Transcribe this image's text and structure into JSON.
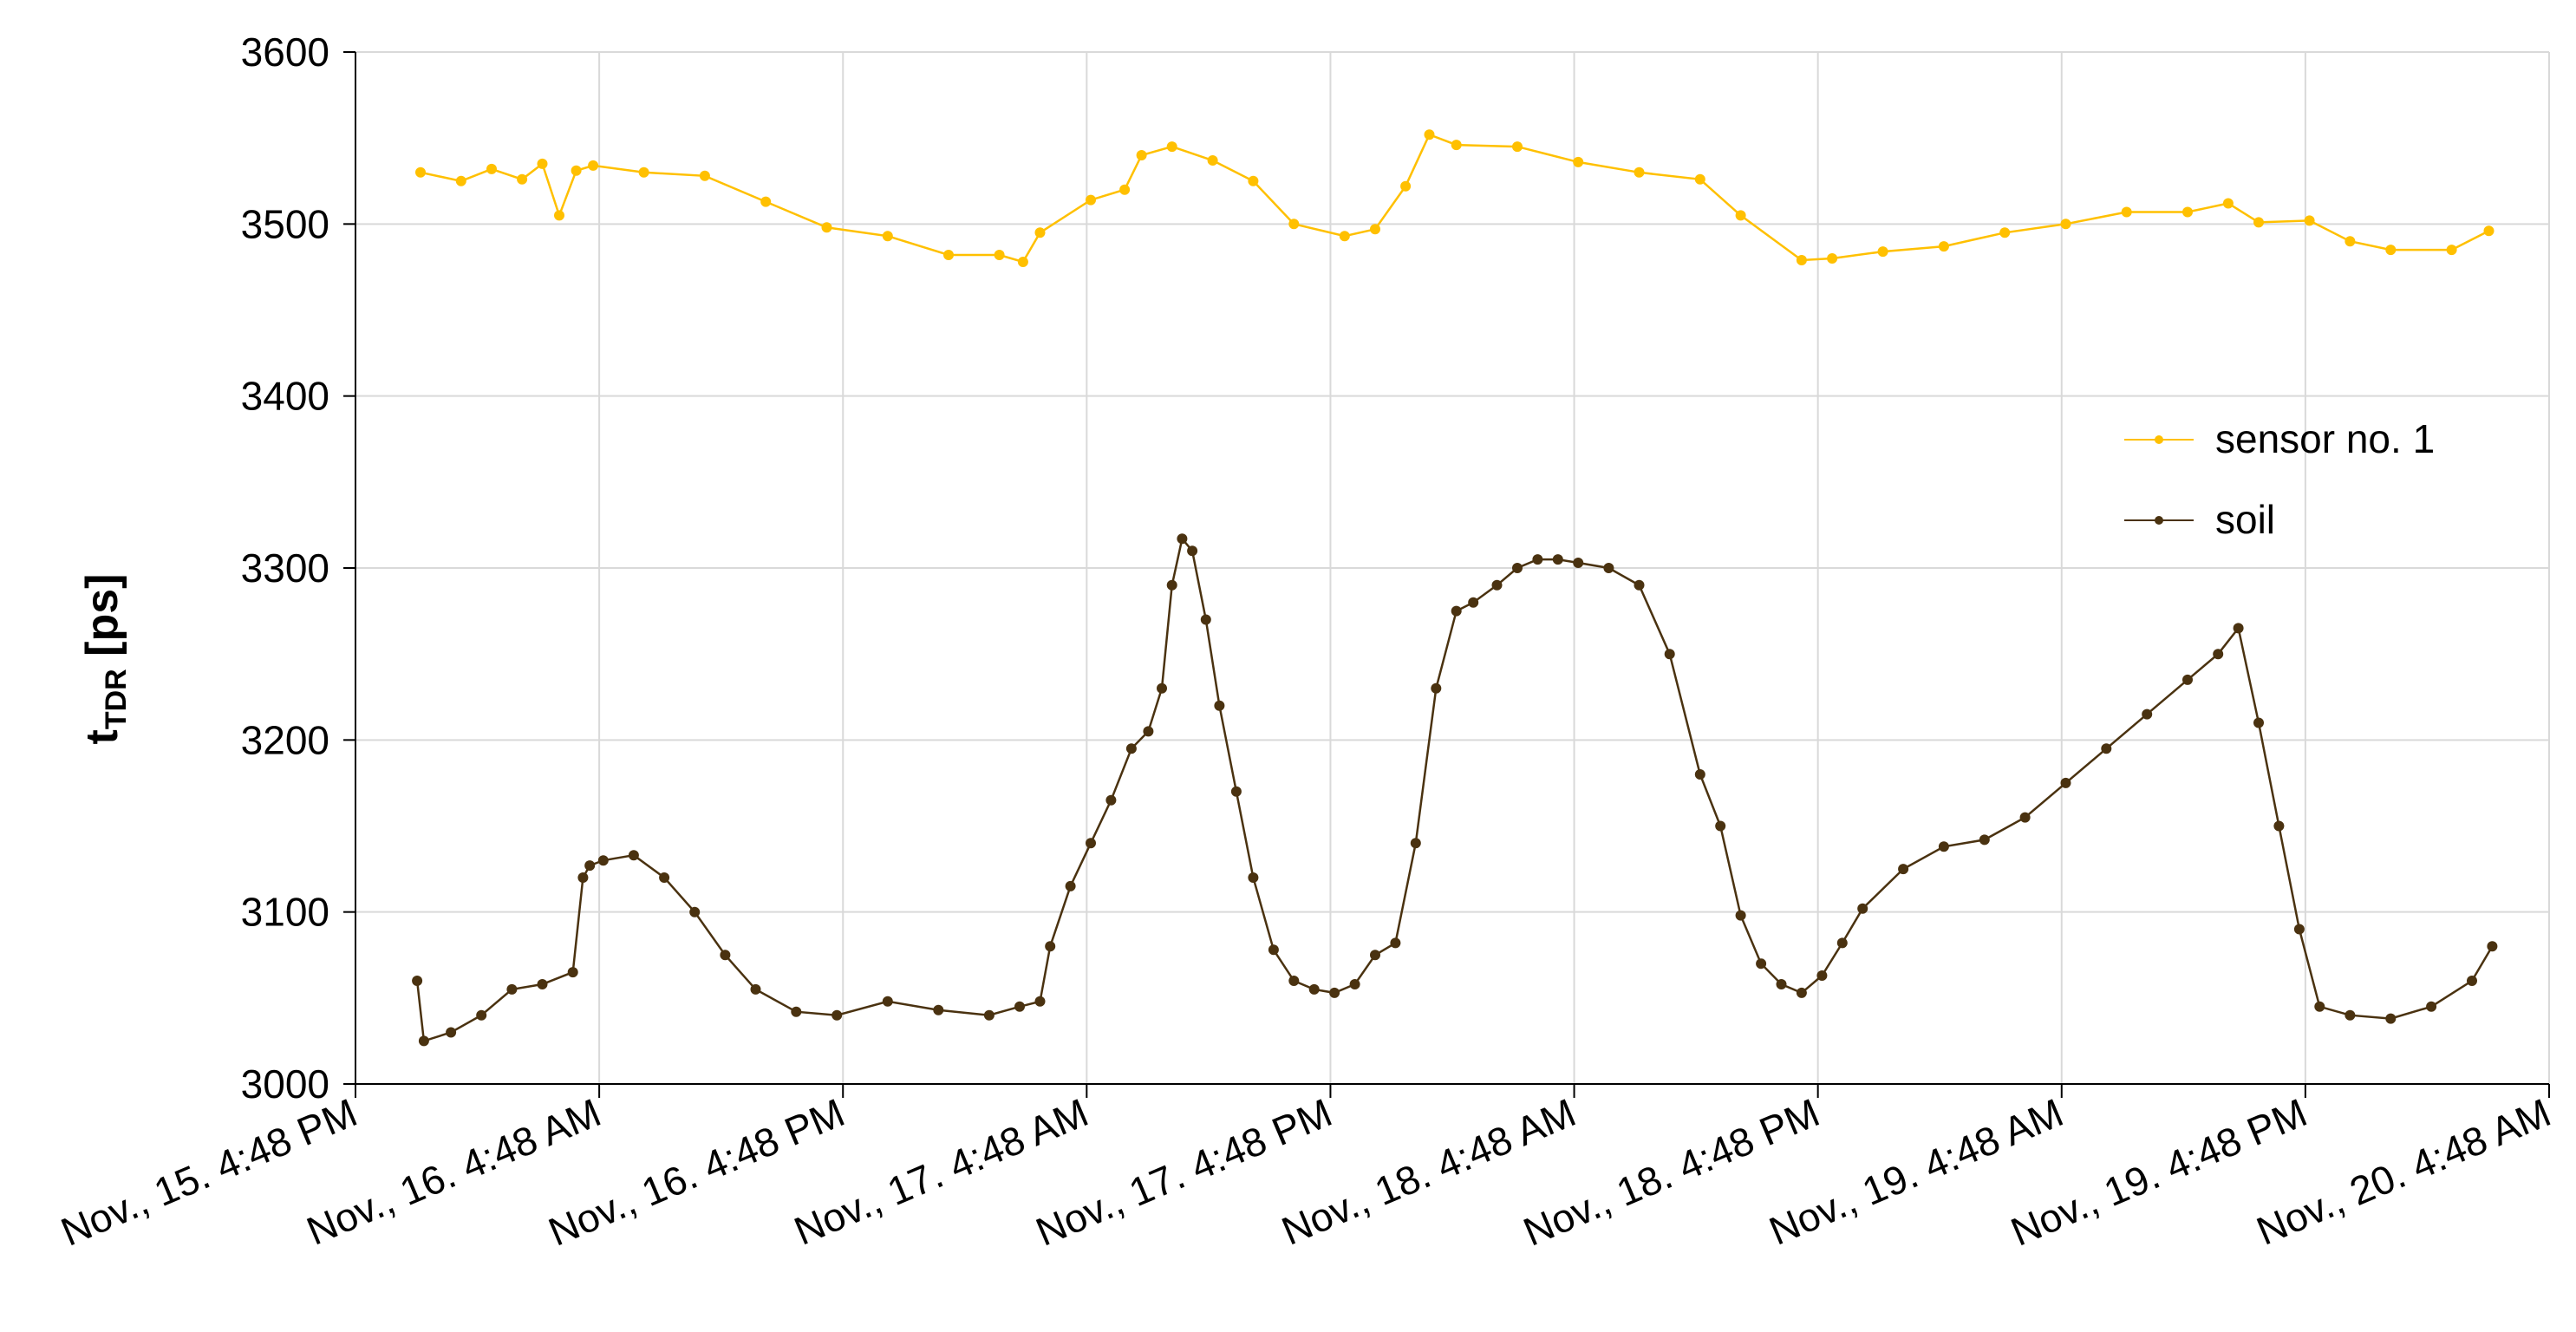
{
  "chart_data": {
    "type": "line",
    "title": "",
    "xlabel": "",
    "ylabel": {
      "main": "t",
      "sub": "TDR",
      "unit": " [ps]"
    },
    "ylim": [
      3000,
      3600
    ],
    "yticks": [
      "3000",
      "3100",
      "3200",
      "3300",
      "3400",
      "3500",
      "3600"
    ],
    "xlim": [
      "Nov., 15. 4:48 PM",
      "Nov., 20. 4:48 AM"
    ],
    "xticks": [
      "Nov., 15. 4:48 PM",
      "Nov., 16. 4:48 AM",
      "Nov., 16. 4:48 PM",
      "Nov., 17. 4:48 AM",
      "Nov., 17. 4:48 PM",
      "Nov., 18. 4:48 AM",
      "Nov., 18. 4:48 PM",
      "Nov., 19. 4:48 AM",
      "Nov., 19. 4:48 PM",
      "Nov., 20. 4:48 AM"
    ],
    "grid": true,
    "legend_position": "right",
    "series": [
      {
        "name": "sensor no. 1",
        "color": "#FFC000",
        "x": [
          "Nov., 15. 8:00 PM",
          "Nov., 15. 10:00 PM",
          "Nov., 15. 11:30 PM",
          "Nov., 16. 1:00 AM",
          "Nov., 16. 2:00 AM",
          "Nov., 16. 2:50 AM",
          "Nov., 16. 3:40 AM",
          "Nov., 16. 4:30 AM",
          "Nov., 16. 7:00 AM",
          "Nov., 16. 10:00 AM",
          "Nov., 16. 1:00 PM",
          "Nov., 16. 4:00 PM",
          "Nov., 16. 7:00 PM",
          "Nov., 16. 10:00 PM",
          "Nov., 17. 12:30 AM",
          "Nov., 17. 1:40 AM",
          "Nov., 17. 2:30 AM",
          "Nov., 17. 5:00 AM",
          "Nov., 17. 6:40 AM",
          "Nov., 17. 7:30 AM",
          "Nov., 17. 9:00 AM",
          "Nov., 17. 11:00 AM",
          "Nov., 17. 1:00 PM",
          "Nov., 17. 3:00 PM",
          "Nov., 17. 5:30 PM",
          "Nov., 17. 7:00 PM",
          "Nov., 17. 8:30 PM",
          "Nov., 17. 9:40 PM",
          "Nov., 17. 11:00 PM",
          "Nov., 18. 2:00 AM",
          "Nov., 18. 5:00 AM",
          "Nov., 18. 8:00 AM",
          "Nov., 18. 11:00 AM",
          "Nov., 18. 1:00 PM",
          "Nov., 18. 4:00 PM",
          "Nov., 18. 5:30 PM",
          "Nov., 18. 8:00 PM",
          "Nov., 18. 11:00 PM",
          "Nov., 19. 2:00 AM",
          "Nov., 19. 5:00 AM",
          "Nov., 19. 8:00 AM",
          "Nov., 19. 11:00 AM",
          "Nov., 19. 1:00 PM",
          "Nov., 19. 2:30 PM",
          "Nov., 19. 5:00 PM",
          "Nov., 19. 7:00 PM",
          "Nov., 19. 9:00 PM",
          "Nov., 20. 12:00 AM",
          "Nov., 20. 1:50 AM"
        ],
        "y": [
          3530,
          3525,
          3532,
          3526,
          3535,
          3505,
          3531,
          3534,
          3530,
          3528,
          3513,
          3498,
          3493,
          3482,
          3482,
          3478,
          3495,
          3514,
          3520,
          3540,
          3545,
          3537,
          3525,
          3500,
          3493,
          3497,
          3522,
          3552,
          3546,
          3545,
          3536,
          3530,
          3526,
          3505,
          3479,
          3480,
          3484,
          3487,
          3495,
          3500,
          3507,
          3507,
          3512,
          3501,
          3502,
          3490,
          3485,
          3485,
          3496
        ]
      },
      {
        "name": "soil",
        "color": "#4A3210",
        "x": [
          "Nov., 15. 7:50 PM",
          "Nov., 15. 8:10 PM",
          "Nov., 15. 9:30 PM",
          "Nov., 15. 11:00 PM",
          "Nov., 16. 12:30 AM",
          "Nov., 16. 2:00 AM",
          "Nov., 16. 3:30 AM",
          "Nov., 16. 4:00 AM",
          "Nov., 16. 4:20 AM",
          "Nov., 16. 5:00 AM",
          "Nov., 16. 6:30 AM",
          "Nov., 16. 8:00 AM",
          "Nov., 16. 9:30 AM",
          "Nov., 16. 11:00 AM",
          "Nov., 16. 12:30 PM",
          "Nov., 16. 2:30 PM",
          "Nov., 16. 4:30 PM",
          "Nov., 16. 7:00 PM",
          "Nov., 16. 9:30 PM",
          "Nov., 17. 12:00 AM",
          "Nov., 17. 1:30 AM",
          "Nov., 17. 2:30 AM",
          "Nov., 17. 3:00 AM",
          "Nov., 17. 4:00 AM",
          "Nov., 17. 5:00 AM",
          "Nov., 17. 6:00 AM",
          "Nov., 17. 7:00 AM",
          "Nov., 17. 7:50 AM",
          "Nov., 17. 8:30 AM",
          "Nov., 17. 9:00 AM",
          "Nov., 17. 9:30 AM",
          "Nov., 17. 10:00 AM",
          "Nov., 17. 10:40 AM",
          "Nov., 17. 11:20 AM",
          "Nov., 17. 12:10 PM",
          "Nov., 17. 1:00 PM",
          "Nov., 17. 2:00 PM",
          "Nov., 17. 3:00 PM",
          "Nov., 17. 4:00 PM",
          "Nov., 17. 5:00 PM",
          "Nov., 17. 6:00 PM",
          "Nov., 17. 7:00 PM",
          "Nov., 17. 8:00 PM",
          "Nov., 17. 9:00 PM",
          "Nov., 17. 10:00 PM",
          "Nov., 17. 11:00 PM",
          "Nov., 17. 11:50 PM",
          "Nov., 18. 1:00 AM",
          "Nov., 18. 2:00 AM",
          "Nov., 18. 3:00 AM",
          "Nov., 18. 4:00 AM",
          "Nov., 18. 5:00 AM",
          "Nov., 18. 6:30 AM",
          "Nov., 18. 8:00 AM",
          "Nov., 18. 9:30 AM",
          "Nov., 18. 11:00 AM",
          "Nov., 18. 12:00 PM",
          "Nov., 18. 1:00 PM",
          "Nov., 18. 2:00 PM",
          "Nov., 18. 3:00 PM",
          "Nov., 18. 4:00 PM",
          "Nov., 18. 5:00 PM",
          "Nov., 18. 6:00 PM",
          "Nov., 18. 7:00 PM",
          "Nov., 18. 9:00 PM",
          "Nov., 18. 11:00 PM",
          "Nov., 19. 1:00 AM",
          "Nov., 19. 3:00 AM",
          "Nov., 19. 5:00 AM",
          "Nov., 19. 7:00 AM",
          "Nov., 19. 9:00 AM",
          "Nov., 19. 11:00 AM",
          "Nov., 19. 12:30 PM",
          "Nov., 19. 1:30 PM",
          "Nov., 19. 2:30 PM",
          "Nov., 19. 3:30 PM",
          "Nov., 19. 4:30 PM",
          "Nov., 19. 5:30 PM",
          "Nov., 19. 7:00 PM",
          "Nov., 19. 9:00 PM",
          "Nov., 19. 11:00 PM",
          "Nov., 20. 1:00 AM",
          "Nov., 20. 2:00 AM"
        ],
        "y": [
          3060,
          3025,
          3030,
          3040,
          3055,
          3058,
          3065,
          3120,
          3127,
          3130,
          3133,
          3120,
          3100,
          3075,
          3055,
          3042,
          3040,
          3048,
          3043,
          3040,
          3045,
          3048,
          3080,
          3115,
          3140,
          3165,
          3195,
          3205,
          3230,
          3290,
          3317,
          3310,
          3270,
          3220,
          3170,
          3120,
          3078,
          3060,
          3055,
          3053,
          3058,
          3075,
          3082,
          3140,
          3230,
          3275,
          3280,
          3290,
          3300,
          3305,
          3305,
          3303,
          3300,
          3290,
          3250,
          3180,
          3150,
          3098,
          3070,
          3058,
          3053,
          3063,
          3082,
          3102,
          3125,
          3138,
          3142,
          3155,
          3175,
          3195,
          3215,
          3235,
          3250,
          3265,
          3210,
          3150,
          3090,
          3045,
          3040,
          3038,
          3045,
          3060,
          3080
        ]
      }
    ]
  }
}
